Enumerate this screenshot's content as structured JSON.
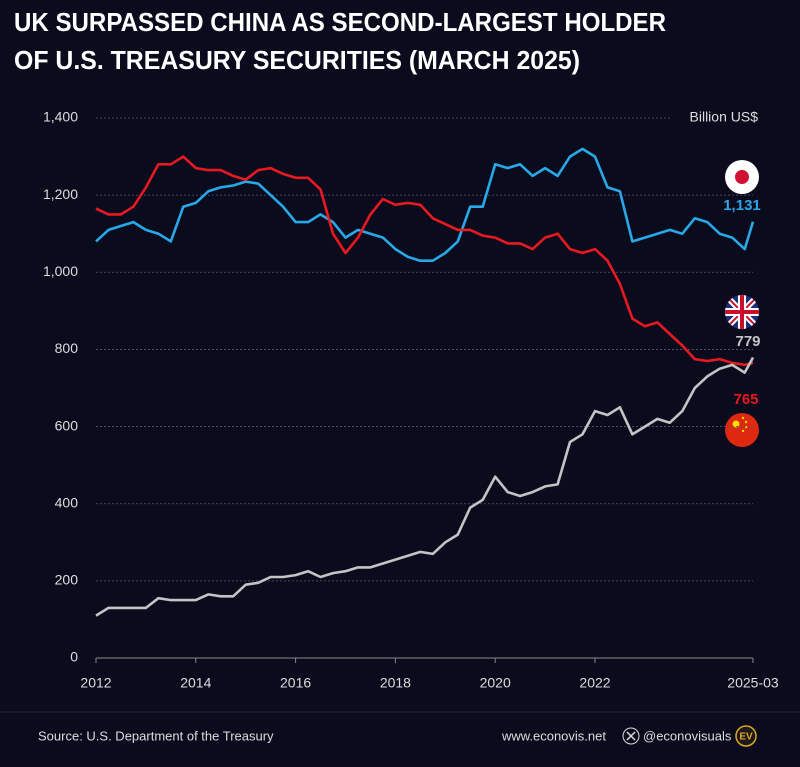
{
  "chart_data": {
    "type": "line",
    "title": [
      "UK SURPASSED CHINA AS SECOND-LARGEST HOLDER",
      "OF U.S. TREASURY SECURITIES (MARCH 2025)"
    ],
    "unit_label": "Billion US$",
    "source": "Source: U.S. Department of the Treasury",
    "website": "www.econovis.net",
    "handle": "@econovisuals",
    "logo": "EV",
    "x": [
      "2012-01",
      "2012-04",
      "2012-07",
      "2012-10",
      "2013-01",
      "2013-04",
      "2013-07",
      "2013-10",
      "2014-01",
      "2014-04",
      "2014-07",
      "2014-10",
      "2015-01",
      "2015-04",
      "2015-07",
      "2015-10",
      "2016-01",
      "2016-04",
      "2016-07",
      "2016-10",
      "2017-01",
      "2017-04",
      "2017-07",
      "2017-10",
      "2018-01",
      "2018-04",
      "2018-07",
      "2018-10",
      "2019-01",
      "2019-04",
      "2019-07",
      "2019-10",
      "2020-01",
      "2020-04",
      "2020-07",
      "2020-10",
      "2021-01",
      "2021-04",
      "2021-07",
      "2021-10",
      "2022-01",
      "2022-04",
      "2022-07",
      "2022-10",
      "2023-01",
      "2023-04",
      "2023-07",
      "2023-10",
      "2024-01",
      "2024-04",
      "2024-07",
      "2024-10",
      "2025-01",
      "2025-03"
    ],
    "series": [
      {
        "color": "#29a8e8",
        "last_value_label": "1,131",
        "values": [
          1080,
          1110,
          1120,
          1130,
          1110,
          1100,
          1080,
          1170,
          1180,
          1210,
          1220,
          1225,
          1235,
          1230,
          1200,
          1170,
          1130,
          1130,
          1150,
          1130,
          1090,
          1110,
          1100,
          1090,
          1060,
          1040,
          1030,
          1030,
          1050,
          1080,
          1170,
          1170,
          1280,
          1270,
          1280,
          1250,
          1270,
          1250,
          1300,
          1320,
          1300,
          1220,
          1210,
          1080,
          1090,
          1100,
          1110,
          1100,
          1140,
          1130,
          1100,
          1090,
          1060,
          1131
        ]
      },
      {
        "color": "#e8191f",
        "values": [
          1165,
          1150,
          1150,
          1170,
          1220,
          1280,
          1280,
          1300,
          1270,
          1265,
          1265,
          1250,
          1240,
          1265,
          1270,
          1255,
          1245,
          1245,
          1215,
          1100,
          1050,
          1090,
          1150,
          1190,
          1175,
          1180,
          1175,
          1140,
          1125,
          1110,
          1110,
          1095,
          1090,
          1075,
          1075,
          1060,
          1090,
          1100,
          1060,
          1050,
          1060,
          1030,
          970,
          880,
          860,
          870,
          840,
          810,
          775,
          770,
          775,
          765,
          760,
          765
        ]
      },
      {
        "color": "#c4c4c4",
        "values": [
          110,
          130,
          130,
          130,
          130,
          155,
          150,
          150,
          150,
          165,
          160,
          160,
          190,
          195,
          210,
          210,
          215,
          225,
          210,
          220,
          225,
          235,
          235,
          245,
          255,
          265,
          275,
          270,
          300,
          320,
          390,
          410,
          470,
          430,
          420,
          430,
          445,
          450,
          560,
          580,
          640,
          630,
          650,
          580,
          600,
          620,
          610,
          640,
          700,
          730,
          750,
          760,
          740,
          779
        ]
      }
    ],
    "xlim": [
      "2012-01",
      "2025-03"
    ],
    "xticks": [
      {
        "value": "2012-01",
        "label": "2012"
      },
      {
        "value": "2014-01",
        "label": "2014"
      },
      {
        "value": "2016-01",
        "label": "2016"
      },
      {
        "value": "2018-01",
        "label": "2018"
      },
      {
        "value": "2020-01",
        "label": "2020"
      },
      {
        "value": "2022-01",
        "label": "2022"
      },
      "2025-03"
    ],
    "ylim": [
      0,
      1400
    ],
    "yticks": [
      0,
      200,
      400,
      600,
      800,
      {
        "value": 1000,
        "label": "1,000"
      },
      {
        "value": 1200,
        "label": "1,200"
      },
      {
        "value": 1400,
        "label": "1,400"
      }
    ],
    "grid": true
  }
}
